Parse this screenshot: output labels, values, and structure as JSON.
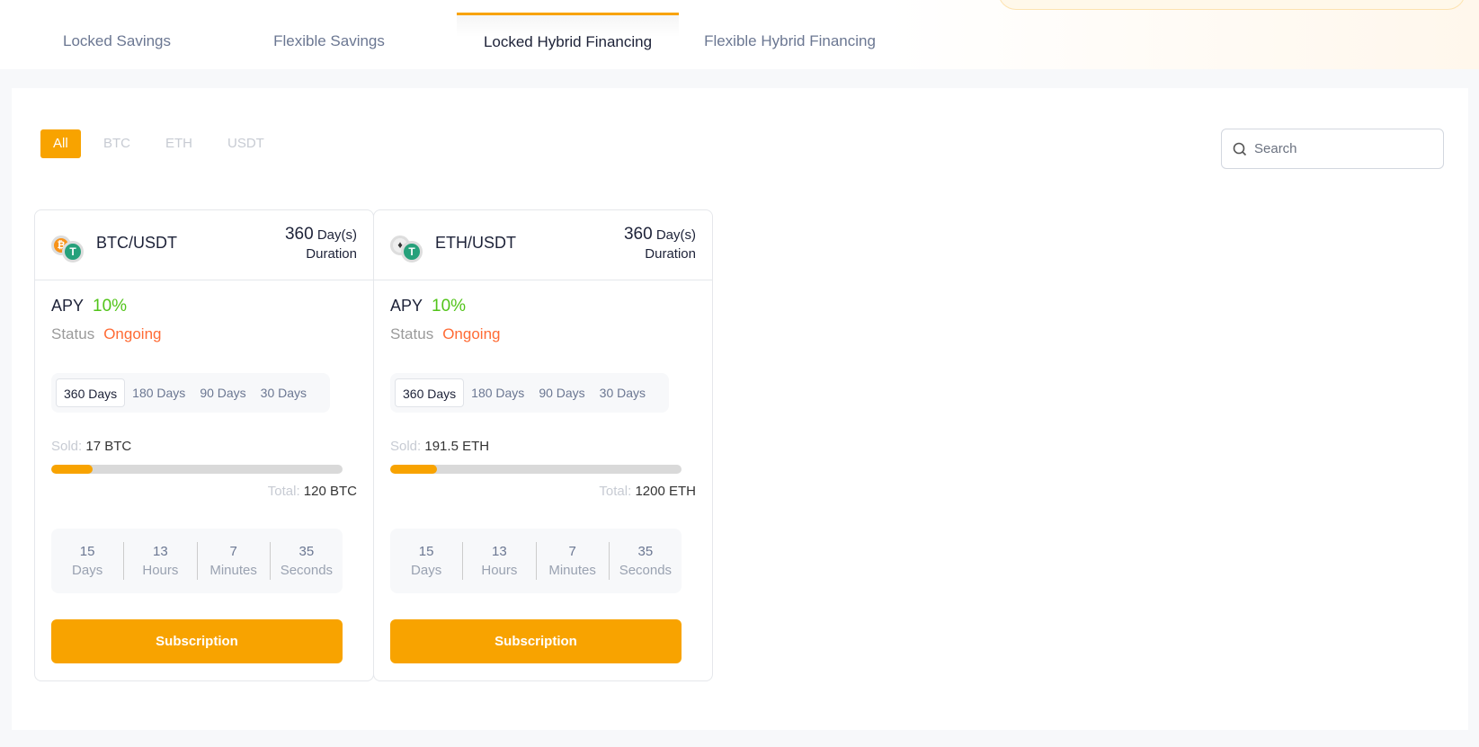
{
  "tabs": [
    "Locked Savings",
    "Flexible Savings",
    "Locked Hybrid Financing",
    "Flexible Hybrid Financing"
  ],
  "active_tab": "Locked Hybrid Financing",
  "filters": [
    "All",
    "BTC",
    "ETH",
    "USDT"
  ],
  "search": {
    "placeholder": "Search"
  },
  "cards": [
    {
      "pair": "BTC/USDT",
      "duration_value": "360",
      "duration_unit": "Day(s)",
      "duration_label": "Duration",
      "apy_label": "APY",
      "apy": "10%",
      "status_label": "Status",
      "status": "Ongoing",
      "periods": [
        "360 Days",
        "180 Days",
        "90 Days",
        "30 Days"
      ],
      "sold_label": "Sold:",
      "sold": "17 BTC",
      "total_label": "Total:",
      "total": "120 BTC",
      "progress_percent": 14.2,
      "countdown": [
        {
          "v": "15",
          "l": "Days"
        },
        {
          "v": "13",
          "l": "Hours"
        },
        {
          "v": "7",
          "l": "Minutes"
        },
        {
          "v": "35",
          "l": "Seconds"
        }
      ],
      "button": "Subscription"
    },
    {
      "pair": "ETH/USDT",
      "duration_value": "360",
      "duration_unit": "Day(s)",
      "duration_label": "Duration",
      "apy_label": "APY",
      "apy": "10%",
      "status_label": "Status",
      "status": "Ongoing",
      "periods": [
        "360 Days",
        "180 Days",
        "90 Days",
        "30 Days"
      ],
      "sold_label": "Sold:",
      "sold": "191.5 ETH",
      "total_label": "Total:",
      "total": "1200 ETH",
      "progress_percent": 16,
      "countdown": [
        {
          "v": "15",
          "l": "Days"
        },
        {
          "v": "13",
          "l": "Hours"
        },
        {
          "v": "7",
          "l": "Minutes"
        },
        {
          "v": "35",
          "l": "Seconds"
        }
      ],
      "button": "Subscription"
    }
  ],
  "colors": {
    "accent": "#f8a300",
    "apy": "#52c41a",
    "status": "#ff6b35"
  }
}
